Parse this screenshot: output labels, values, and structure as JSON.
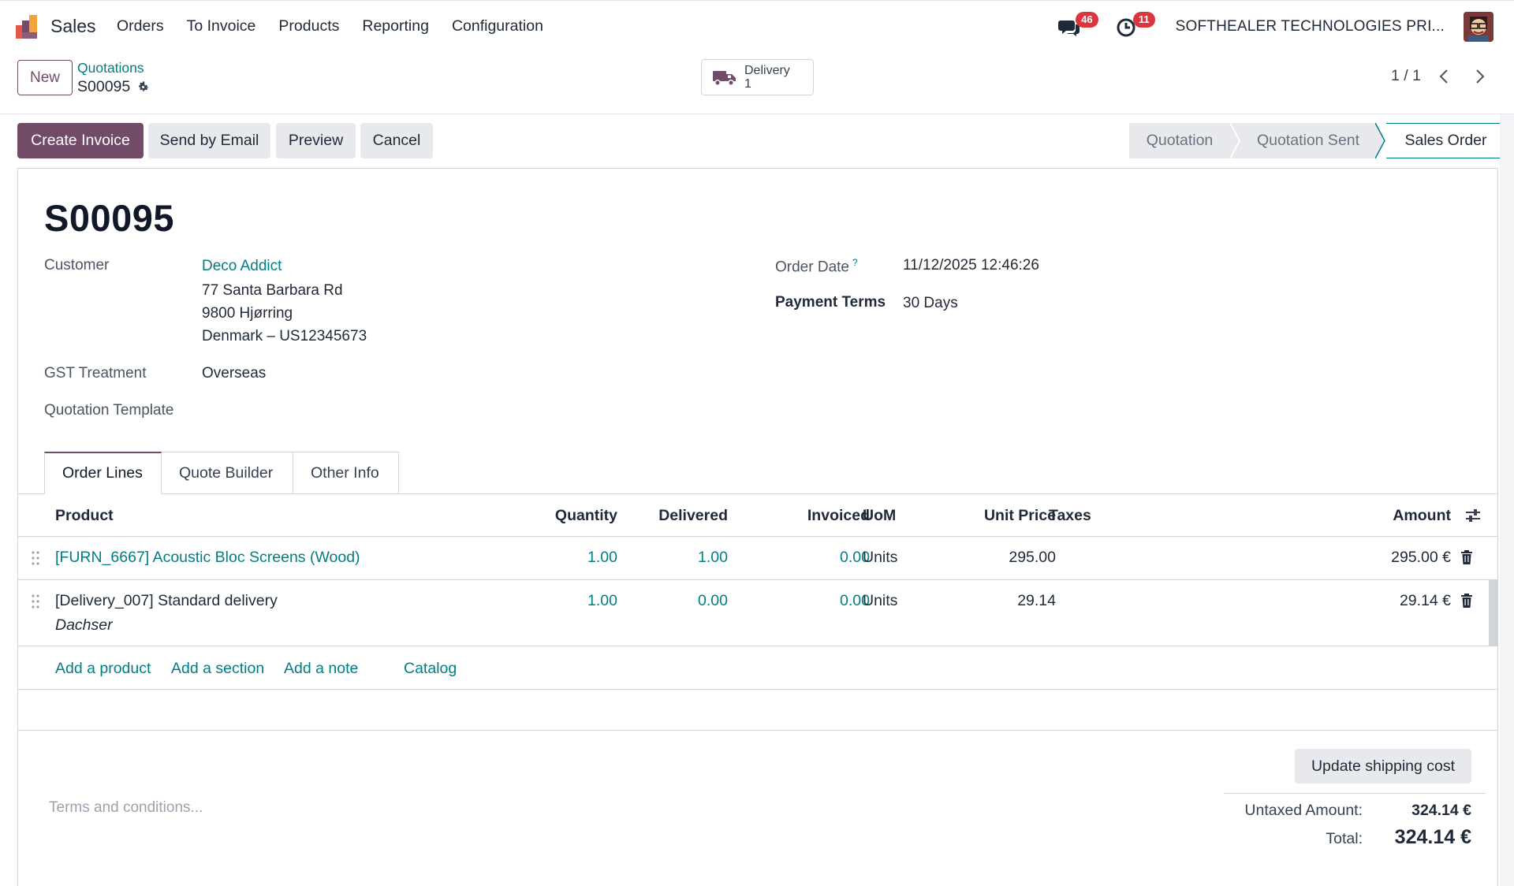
{
  "navbar": {
    "app_name": "Sales",
    "menu": [
      "Orders",
      "To Invoice",
      "Products",
      "Reporting",
      "Configuration"
    ],
    "messages_count": "46",
    "activities_count": "11",
    "company": "SOFTHEALER TECHNOLOGIES PRI..."
  },
  "control": {
    "new_label": "New",
    "breadcrumb_parent": "Quotations",
    "breadcrumb_current": "S00095",
    "delivery_label": "Delivery",
    "delivery_count": "1",
    "pager": "1 / 1"
  },
  "actions": {
    "create_invoice": "Create Invoice",
    "send_email": "Send by Email",
    "preview": "Preview",
    "cancel": "Cancel"
  },
  "stages": [
    "Quotation",
    "Quotation Sent",
    "Sales Order"
  ],
  "active_stage": "Sales Order",
  "form": {
    "title": "S00095",
    "customer_label": "Customer",
    "customer_name": "Deco Addict",
    "customer_address_1": "77 Santa Barbara Rd",
    "customer_address_2": "9800 Hjørring",
    "customer_address_3": "Denmark – US12345673",
    "gst_label": "GST Treatment",
    "gst_value": "Overseas",
    "template_label": "Quotation Template",
    "order_date_label": "Order Date",
    "order_date_help": "?",
    "order_date_value": "11/12/2025 12:46:26",
    "payment_terms_label": "Payment Terms",
    "payment_terms_value": "30 Days"
  },
  "tabs": [
    "Order Lines",
    "Quote Builder",
    "Other Info"
  ],
  "table": {
    "headers": {
      "product": "Product",
      "quantity": "Quantity",
      "delivered": "Delivered",
      "invoiced": "Invoiced",
      "uom": "UoM",
      "unit_price": "Unit Price",
      "taxes": "Taxes",
      "amount": "Amount"
    },
    "rows": [
      {
        "product": "[FURN_6667] Acoustic Bloc Screens (Wood)",
        "description": "",
        "quantity": "1.00",
        "delivered": "1.00",
        "invoiced": "0.00",
        "uom": "Units",
        "unit_price": "295.00",
        "taxes": "",
        "amount": "295.00 €"
      },
      {
        "product": "[Delivery_007] Standard delivery",
        "description": "Dachser",
        "quantity": "1.00",
        "delivered": "0.00",
        "invoiced": "0.00",
        "uom": "Units",
        "unit_price": "29.14",
        "taxes": "",
        "amount": "29.14 €"
      }
    ],
    "add_product": "Add a product",
    "add_section": "Add a section",
    "add_note": "Add a note",
    "catalog": "Catalog"
  },
  "footer": {
    "terms_placeholder": "Terms and conditions...",
    "update_shipping": "Update shipping cost",
    "untaxed_label": "Untaxed Amount:",
    "untaxed_value": "324.14 €",
    "total_label": "Total:",
    "total_value": "324.14 €"
  },
  "colors": {
    "brand": "#714b67",
    "link": "#017e84",
    "badge": "#d9363e"
  }
}
